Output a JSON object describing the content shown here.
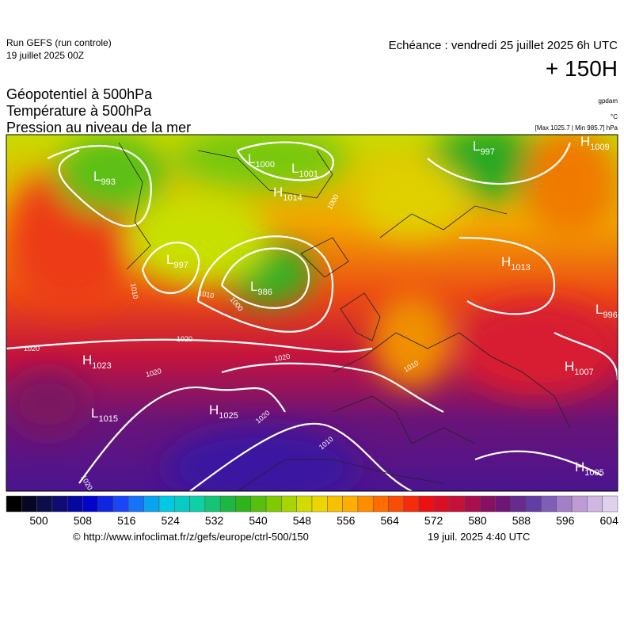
{
  "header": {
    "run": "Run GEFS (run controle)",
    "run_date": "19 juillet 2025 00Z",
    "echeance": "Echéance : vendredi 25 juillet 2025 6h UTC",
    "lead": "+ 150H"
  },
  "legend": {
    "lines": [
      "Géopotentiel à 500hPa",
      "Température à 500hPa",
      "Pression au niveau de la mer"
    ],
    "units": [
      "gpdam",
      "°C",
      "[Max 1025.7 | Min 985.7] hPa"
    ]
  },
  "pressure_centers": [
    {
      "letter": "L",
      "value": "993"
    },
    {
      "letter": "L",
      "value": "1000"
    },
    {
      "letter": "L",
      "value": "1001"
    },
    {
      "letter": "H",
      "value": "1014"
    },
    {
      "letter": "L",
      "value": "997"
    },
    {
      "letter": "L",
      "value": "986"
    },
    {
      "letter": "L",
      "value": "997"
    },
    {
      "letter": "H",
      "value": "1009"
    },
    {
      "letter": "H",
      "value": "1013"
    },
    {
      "letter": "L",
      "value": "996"
    },
    {
      "letter": "H",
      "value": "1023"
    },
    {
      "letter": "L",
      "value": "1015"
    },
    {
      "letter": "H",
      "value": "1025"
    },
    {
      "letter": "H",
      "value": "1007"
    },
    {
      "letter": "H",
      "value": "1005"
    }
  ],
  "isobar_labels": [
    "1020",
    "1020",
    "1020",
    "1020",
    "1020",
    "1020",
    "1010",
    "1010",
    "1000",
    "1000",
    "1010",
    "1010"
  ],
  "colorbar": {
    "ticks": [
      "500",
      "508",
      "516",
      "524",
      "532",
      "540",
      "548",
      "556",
      "564",
      "572",
      "580",
      "588",
      "596",
      "604"
    ]
  },
  "footer": {
    "url": "© http://www.infoclimat.fr/z/gefs/europe/ctrl-500/150",
    "time": "19 juil. 2025  4:40 UTC"
  }
}
